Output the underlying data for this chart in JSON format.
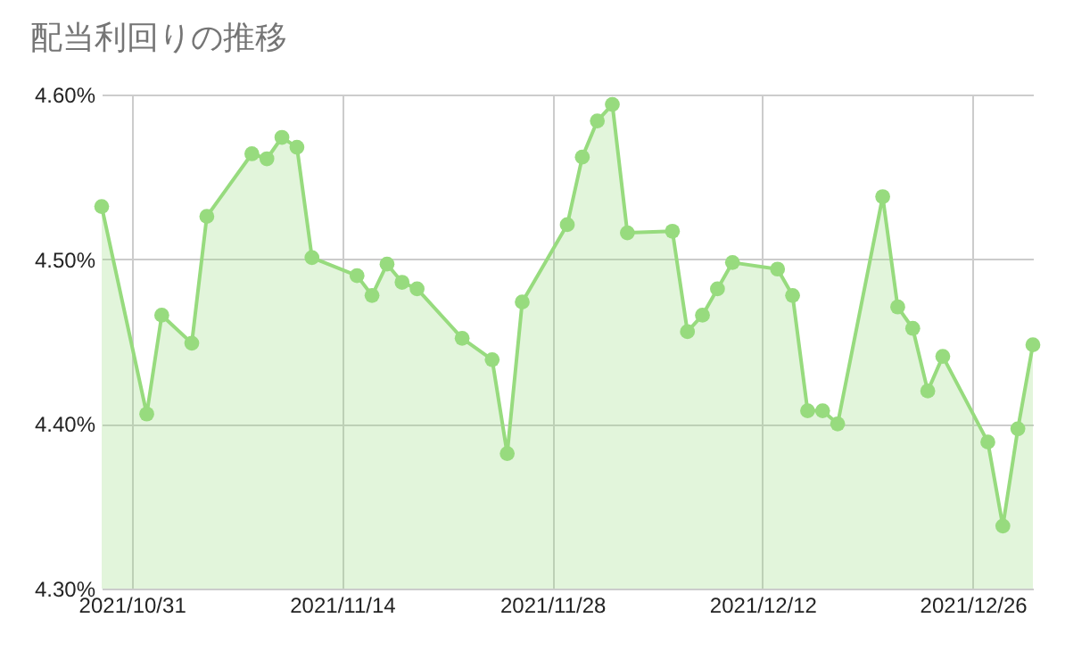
{
  "chart_data": {
    "type": "area",
    "title": "配当利回りの推移",
    "x": [
      "2021-10-29",
      "2021-11-01",
      "2021-11-02",
      "2021-11-04",
      "2021-11-05",
      "2021-11-08",
      "2021-11-09",
      "2021-11-10",
      "2021-11-11",
      "2021-11-12",
      "2021-11-15",
      "2021-11-16",
      "2021-11-17",
      "2021-11-18",
      "2021-11-19",
      "2021-11-22",
      "2021-11-24",
      "2021-11-25",
      "2021-11-26",
      "2021-11-29",
      "2021-11-30",
      "2021-12-01",
      "2021-12-02",
      "2021-12-03",
      "2021-12-06",
      "2021-12-07",
      "2021-12-08",
      "2021-12-09",
      "2021-12-10",
      "2021-12-13",
      "2021-12-14",
      "2021-12-15",
      "2021-12-16",
      "2021-12-17",
      "2021-12-20",
      "2021-12-21",
      "2021-12-22",
      "2021-12-23",
      "2021-12-24",
      "2021-12-27",
      "2021-12-28",
      "2021-12-29",
      "2021-12-30"
    ],
    "series": [
      {
        "color": "#97db7e",
        "values": [
          4.532,
          4.406,
          4.466,
          4.449,
          4.526,
          4.564,
          4.561,
          4.574,
          4.568,
          4.501,
          4.49,
          4.478,
          4.497,
          4.486,
          4.482,
          4.452,
          4.439,
          4.382,
          4.474,
          4.521,
          4.562,
          4.584,
          4.594,
          4.516,
          4.517,
          4.456,
          4.466,
          4.482,
          4.498,
          4.494,
          4.478,
          4.408,
          4.408,
          4.4,
          4.538,
          4.471,
          4.458,
          4.42,
          4.441,
          4.389,
          4.338,
          4.397,
          4.448
        ]
      }
    ],
    "xlim": [
      "2021-10-29",
      "2021-12-30"
    ],
    "xticks": [
      {
        "value": "2021-10-31",
        "label": "2021/10/31"
      },
      {
        "value": "2021-11-14",
        "label": "2021/11/14"
      },
      {
        "value": "2021-11-28",
        "label": "2021/11/28"
      },
      {
        "value": "2021-12-12",
        "label": "2021/12/12"
      },
      {
        "value": "2021-12-26",
        "label": "2021/12/26"
      }
    ],
    "ylim": [
      4.3,
      4.6
    ],
    "yticks": [
      {
        "value": 4.3,
        "label": "4.30%"
      },
      {
        "value": 4.4,
        "label": "4.40%"
      },
      {
        "value": 4.5,
        "label": "4.50%"
      },
      {
        "value": 4.6,
        "label": "4.60%"
      }
    ],
    "grid": true,
    "marker": "circle",
    "line_style": "solid",
    "legend": false
  }
}
